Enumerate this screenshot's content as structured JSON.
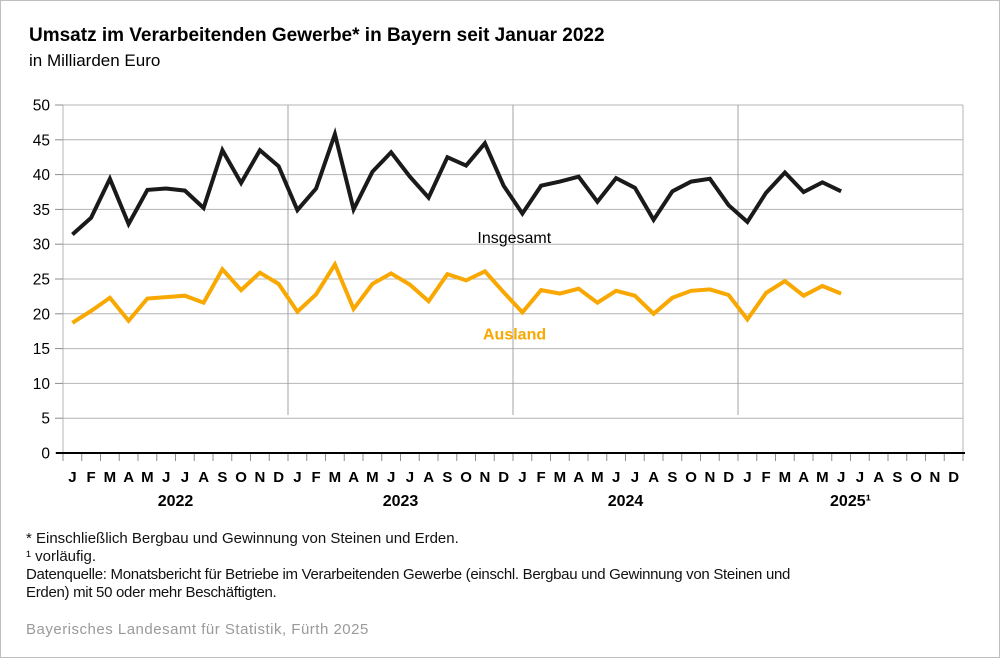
{
  "title": "Umsatz im Verarbeitenden Gewerbe* in Bayern seit Januar 2022",
  "subtitle": "in Milliarden Euro",
  "chart_data": {
    "type": "line",
    "title": "Umsatz im Verarbeitenden Gewerbe in Bayern seit Januar 2022",
    "ylabel": "Milliarden Euro",
    "ylim": [
      0,
      50
    ],
    "ytick_step": 5,
    "grid": true,
    "years": [
      "2022",
      "2023",
      "2024",
      "2025¹"
    ],
    "month_letters": [
      "J",
      "F",
      "M",
      "A",
      "M",
      "J",
      "J",
      "A",
      "S",
      "O",
      "N",
      "D"
    ],
    "x_months_total": 48,
    "series": [
      {
        "name": "Insgesamt",
        "color": "#1a1a1a",
        "values": [
          31.4,
          33.8,
          39.4,
          32.9,
          37.8,
          38.0,
          37.7,
          35.2,
          43.5,
          38.8,
          43.5,
          41.2,
          34.9,
          38.0,
          45.8,
          35.0,
          40.4,
          43.2,
          39.7,
          36.7,
          42.5,
          41.3,
          44.5,
          38.4,
          34.4,
          38.4,
          39.0,
          39.7,
          36.1,
          39.5,
          38.1,
          33.5,
          37.6,
          39.0,
          39.4,
          35.6,
          33.2,
          37.4,
          40.3,
          37.5,
          38.9,
          37.6
        ]
      },
      {
        "name": "Ausland",
        "color": "#F8A800",
        "values": [
          18.7,
          20.4,
          22.3,
          19.0,
          22.2,
          22.4,
          22.6,
          21.6,
          26.4,
          23.4,
          25.9,
          24.3,
          20.3,
          22.8,
          27.1,
          20.7,
          24.3,
          25.8,
          24.2,
          21.8,
          25.7,
          24.8,
          26.1,
          23.1,
          20.2,
          23.4,
          22.9,
          23.6,
          21.6,
          23.3,
          22.6,
          20.0,
          22.3,
          23.3,
          23.5,
          22.7,
          19.2,
          23.0,
          24.7,
          22.6,
          24.0,
          22.9
        ]
      }
    ],
    "annotations": [
      {
        "text": "Insgesamt",
        "month_index": 21.6,
        "value": 30.2,
        "color": "#000000",
        "bold": false
      },
      {
        "text": "Ausland",
        "month_index": 21.9,
        "value": 16.3,
        "color": "#F8A800",
        "bold": true
      }
    ],
    "legend_position": "inline-labels"
  },
  "footnotes": {
    "line1": "* Einschließlich Bergbau und Gewinnung von Steinen und Erden.",
    "line2": "¹ vorläufig.",
    "source_line1": "Datenquelle: Monatsbericht für Betriebe im Verarbeitenden Gewerbe (einschl. Bergbau und Gewinnung von Steinen und",
    "source_line2": "Erden) mit 50 oder mehr Beschäftigten."
  },
  "footer": "Bayerisches Landesamt für Statistik, Fürth 2025",
  "colors": {
    "accent_orange": "#F8A800",
    "line_black": "#1a1a1a",
    "gridline": "#b4b4b4",
    "axis": "#000000",
    "footer_text": "#9a9a9a"
  }
}
